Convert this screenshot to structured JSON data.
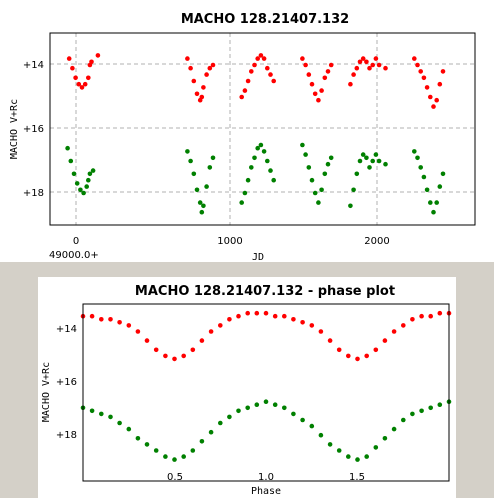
{
  "chart_data": [
    {
      "type": "scatter",
      "title": "MACHO 128.21407.132",
      "xlabel": "JD",
      "ylabel": "MACHO V+Rc",
      "x_offset_label": "49000.0+",
      "xlim": [
        -40,
        2620
      ],
      "ylim": [
        19.0,
        13.0
      ],
      "y_inverted": true,
      "grid": true,
      "x_ticks": [
        0,
        1000,
        2000
      ],
      "x_tick_labels": [
        "0",
        "1000",
        "2000"
      ],
      "y_ticks": [
        14,
        16,
        18
      ],
      "y_tick_labels": [
        "+14",
        "+16",
        "+18"
      ],
      "series": [
        {
          "color": "#ff0000",
          "points": [
            [
              80,
              13.8
            ],
            [
              100,
              14.1
            ],
            [
              120,
              14.4
            ],
            [
              140,
              14.6
            ],
            [
              160,
              14.7
            ],
            [
              180,
              14.6
            ],
            [
              200,
              14.4
            ],
            [
              210,
              14.0
            ],
            [
              220,
              13.9
            ],
            [
              260,
              13.7
            ],
            [
              820,
              13.8
            ],
            [
              840,
              14.1
            ],
            [
              860,
              14.5
            ],
            [
              880,
              14.9
            ],
            [
              900,
              15.1
            ],
            [
              910,
              15.0
            ],
            [
              920,
              14.7
            ],
            [
              940,
              14.3
            ],
            [
              960,
              14.1
            ],
            [
              980,
              14.0
            ],
            [
              1160,
              15.0
            ],
            [
              1180,
              14.8
            ],
            [
              1200,
              14.5
            ],
            [
              1220,
              14.2
            ],
            [
              1240,
              14.0
            ],
            [
              1260,
              13.8
            ],
            [
              1280,
              13.7
            ],
            [
              1300,
              13.8
            ],
            [
              1320,
              14.1
            ],
            [
              1340,
              14.3
            ],
            [
              1360,
              14.5
            ],
            [
              1540,
              13.8
            ],
            [
              1560,
              14.0
            ],
            [
              1580,
              14.3
            ],
            [
              1600,
              14.6
            ],
            [
              1620,
              14.9
            ],
            [
              1640,
              15.1
            ],
            [
              1660,
              14.8
            ],
            [
              1680,
              14.4
            ],
            [
              1700,
              14.2
            ],
            [
              1720,
              14.0
            ],
            [
              1840,
              14.6
            ],
            [
              1860,
              14.3
            ],
            [
              1880,
              14.1
            ],
            [
              1900,
              13.9
            ],
            [
              1920,
              13.8
            ],
            [
              1940,
              13.9
            ],
            [
              1960,
              14.1
            ],
            [
              1980,
              14.0
            ],
            [
              2000,
              13.8
            ],
            [
              2020,
              14.0
            ],
            [
              2060,
              14.1
            ],
            [
              2240,
              13.8
            ],
            [
              2260,
              14.0
            ],
            [
              2280,
              14.2
            ],
            [
              2300,
              14.4
            ],
            [
              2320,
              14.7
            ],
            [
              2340,
              15.0
            ],
            [
              2360,
              15.3
            ],
            [
              2380,
              15.1
            ],
            [
              2400,
              14.6
            ],
            [
              2420,
              14.2
            ]
          ]
        },
        {
          "color": "#008000",
          "points": [
            [
              70,
              16.6
            ],
            [
              90,
              17.0
            ],
            [
              110,
              17.4
            ],
            [
              130,
              17.7
            ],
            [
              150,
              17.9
            ],
            [
              170,
              18.0
            ],
            [
              190,
              17.8
            ],
            [
              200,
              17.6
            ],
            [
              210,
              17.4
            ],
            [
              230,
              17.3
            ],
            [
              820,
              16.7
            ],
            [
              840,
              17.0
            ],
            [
              860,
              17.4
            ],
            [
              880,
              17.9
            ],
            [
              900,
              18.3
            ],
            [
              910,
              18.6
            ],
            [
              920,
              18.4
            ],
            [
              940,
              17.8
            ],
            [
              960,
              17.2
            ],
            [
              980,
              16.9
            ],
            [
              1160,
              18.3
            ],
            [
              1180,
              18.0
            ],
            [
              1200,
              17.6
            ],
            [
              1220,
              17.2
            ],
            [
              1240,
              16.9
            ],
            [
              1260,
              16.6
            ],
            [
              1280,
              16.5
            ],
            [
              1300,
              16.7
            ],
            [
              1320,
              17.0
            ],
            [
              1340,
              17.3
            ],
            [
              1360,
              17.6
            ],
            [
              1540,
              16.5
            ],
            [
              1560,
              16.8
            ],
            [
              1580,
              17.2
            ],
            [
              1600,
              17.6
            ],
            [
              1620,
              18.0
            ],
            [
              1640,
              18.3
            ],
            [
              1660,
              17.9
            ],
            [
              1680,
              17.4
            ],
            [
              1700,
              17.1
            ],
            [
              1720,
              16.9
            ],
            [
              1840,
              18.4
            ],
            [
              1860,
              17.9
            ],
            [
              1880,
              17.4
            ],
            [
              1900,
              17.0
            ],
            [
              1920,
              16.8
            ],
            [
              1940,
              16.9
            ],
            [
              1960,
              17.2
            ],
            [
              1980,
              17.0
            ],
            [
              2000,
              16.8
            ],
            [
              2020,
              17.0
            ],
            [
              2060,
              17.1
            ],
            [
              2240,
              16.7
            ],
            [
              2260,
              16.9
            ],
            [
              2280,
              17.2
            ],
            [
              2300,
              17.5
            ],
            [
              2320,
              17.9
            ],
            [
              2340,
              18.3
            ],
            [
              2360,
              18.6
            ],
            [
              2380,
              18.3
            ],
            [
              2400,
              17.8
            ],
            [
              2420,
              17.4
            ]
          ]
        }
      ]
    },
    {
      "type": "scatter",
      "title": "MACHO 128.21407.132 - phase plot",
      "xlabel": "Phase",
      "ylabel": "MACHO V+Rc",
      "xlim": [
        0.0,
        2.0
      ],
      "ylim": [
        19.1,
        13.3
      ],
      "y_inverted": true,
      "grid": false,
      "x_ticks": [
        0.5,
        1.0,
        1.5
      ],
      "x_tick_labels": [
        "0.5",
        "1.0",
        "1.5"
      ],
      "y_ticks": [
        14,
        16,
        18
      ],
      "y_tick_labels": [
        "+14",
        "+16",
        "+18"
      ],
      "series": [
        {
          "color": "#ff0000",
          "points": [
            [
              0.0,
              13.7
            ],
            [
              0.05,
              13.7
            ],
            [
              0.1,
              13.8
            ],
            [
              0.15,
              13.8
            ],
            [
              0.2,
              13.9
            ],
            [
              0.25,
              14.0
            ],
            [
              0.3,
              14.2
            ],
            [
              0.35,
              14.5
            ],
            [
              0.4,
              14.8
            ],
            [
              0.45,
              15.0
            ],
            [
              0.5,
              15.1
            ],
            [
              0.55,
              15.0
            ],
            [
              0.6,
              14.8
            ],
            [
              0.65,
              14.5
            ],
            [
              0.7,
              14.2
            ],
            [
              0.75,
              14.0
            ],
            [
              0.8,
              13.8
            ],
            [
              0.85,
              13.7
            ],
            [
              0.9,
              13.6
            ],
            [
              0.95,
              13.6
            ],
            [
              1.0,
              13.6
            ],
            [
              1.05,
              13.7
            ],
            [
              1.1,
              13.7
            ],
            [
              1.15,
              13.8
            ],
            [
              1.2,
              13.9
            ],
            [
              1.25,
              14.0
            ],
            [
              1.3,
              14.2
            ],
            [
              1.35,
              14.5
            ],
            [
              1.4,
              14.8
            ],
            [
              1.45,
              15.0
            ],
            [
              1.5,
              15.1
            ],
            [
              1.55,
              15.0
            ],
            [
              1.6,
              14.8
            ],
            [
              1.65,
              14.5
            ],
            [
              1.7,
              14.2
            ],
            [
              1.75,
              14.0
            ],
            [
              1.8,
              13.8
            ],
            [
              1.85,
              13.7
            ],
            [
              1.9,
              13.7
            ],
            [
              1.95,
              13.6
            ],
            [
              2.0,
              13.6
            ]
          ]
        },
        {
          "color": "#008000",
          "points": [
            [
              0.0,
              16.7
            ],
            [
              0.05,
              16.8
            ],
            [
              0.1,
              16.9
            ],
            [
              0.15,
              17.0
            ],
            [
              0.2,
              17.2
            ],
            [
              0.25,
              17.4
            ],
            [
              0.3,
              17.7
            ],
            [
              0.35,
              17.9
            ],
            [
              0.4,
              18.1
            ],
            [
              0.45,
              18.3
            ],
            [
              0.5,
              18.4
            ],
            [
              0.55,
              18.3
            ],
            [
              0.6,
              18.1
            ],
            [
              0.65,
              17.8
            ],
            [
              0.7,
              17.5
            ],
            [
              0.75,
              17.2
            ],
            [
              0.8,
              17.0
            ],
            [
              0.85,
              16.8
            ],
            [
              0.9,
              16.7
            ],
            [
              0.95,
              16.6
            ],
            [
              1.0,
              16.5
            ],
            [
              1.05,
              16.6
            ],
            [
              1.1,
              16.7
            ],
            [
              1.15,
              16.9
            ],
            [
              1.2,
              17.1
            ],
            [
              1.25,
              17.3
            ],
            [
              1.3,
              17.6
            ],
            [
              1.35,
              17.9
            ],
            [
              1.4,
              18.1
            ],
            [
              1.45,
              18.3
            ],
            [
              1.5,
              18.4
            ],
            [
              1.55,
              18.3
            ],
            [
              1.6,
              18.0
            ],
            [
              1.65,
              17.7
            ],
            [
              1.7,
              17.4
            ],
            [
              1.75,
              17.1
            ],
            [
              1.8,
              16.9
            ],
            [
              1.85,
              16.8
            ],
            [
              1.9,
              16.7
            ],
            [
              1.95,
              16.6
            ],
            [
              2.0,
              16.5
            ]
          ]
        }
      ]
    }
  ]
}
